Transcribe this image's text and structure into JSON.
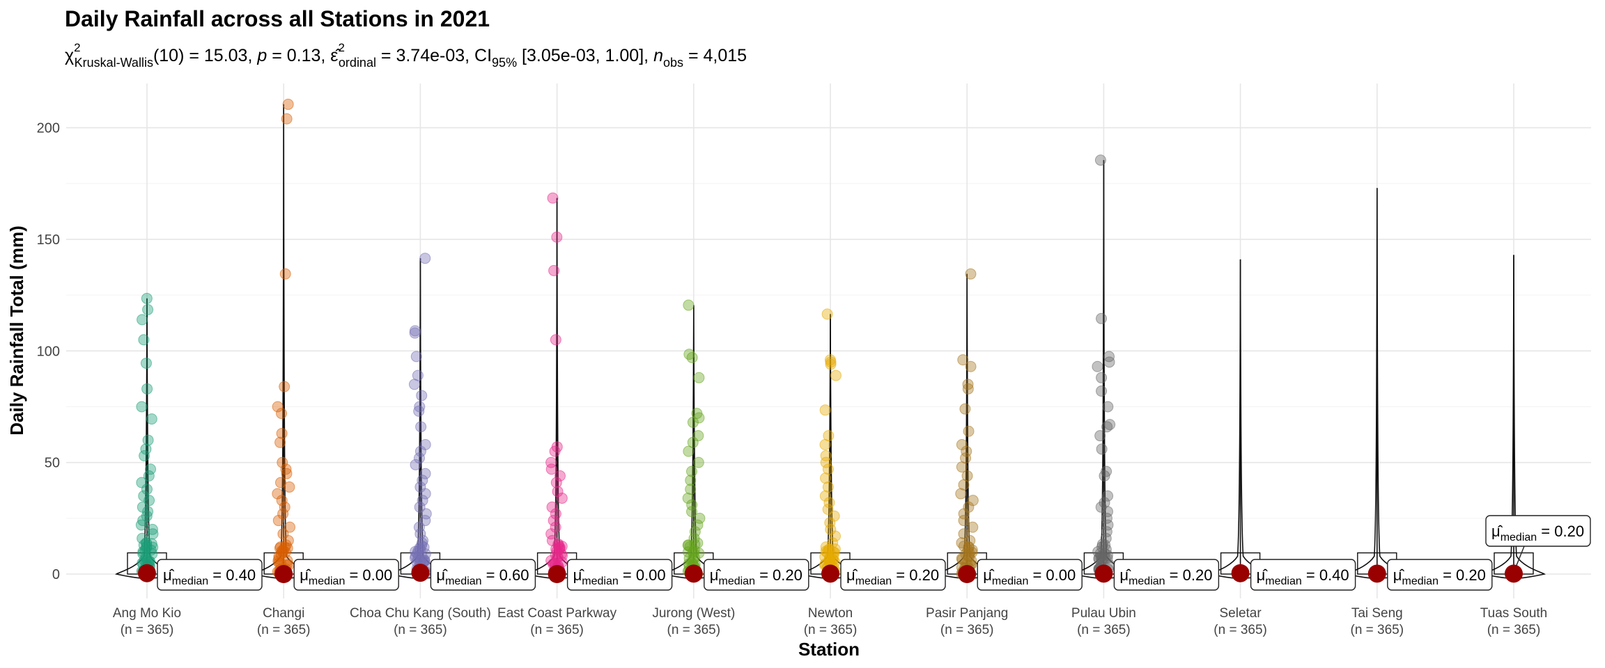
{
  "chart_data": {
    "type": "violin",
    "title": "Daily Rainfall across all Stations in 2021",
    "subtitle": {
      "stat_label": "χ",
      "stat_sup": "2",
      "stat_sub": "Kruskal-Wallis",
      "stat_value": "(10) = 15.03, ",
      "p_label": "p",
      "p_value": " = 0.13, ",
      "eff_label": "ε̂",
      "eff_sup": "2",
      "eff_sub": "ordinal",
      "eff_value": " = 3.74e-03, CI",
      "ci_sub": "95%",
      "ci_value": " [3.05e-03, 1.00], ",
      "n_label": "n",
      "n_sub": "obs",
      "n_value": " = 4,015"
    },
    "xlabel": "Station",
    "ylabel": "Daily Rainfall Total (mm)",
    "ylim": [
      -5,
      215
    ],
    "yticks": [
      0,
      50,
      100,
      150,
      200
    ],
    "median_prefix": "μ̂",
    "median_sub": "median",
    "stations": [
      {
        "name": "Ang Mo Kio",
        "n_label": "(n = 365)",
        "color": "#1B9E77",
        "median": 0.4,
        "median_text": " = 0.40",
        "max": 123.5,
        "points": [
          123.5,
          118.5,
          114,
          105,
          94.5,
          83,
          75,
          69.5,
          60,
          56,
          53,
          47,
          44,
          41,
          38,
          35,
          33,
          30,
          28,
          26,
          24,
          22,
          20,
          18,
          16,
          14,
          12,
          10,
          8,
          6,
          4,
          2,
          1
        ]
      },
      {
        "name": "Changi",
        "n_label": "(n = 365)",
        "color": "#D95F02",
        "median": 0.0,
        "median_text": " = 0.00",
        "max": 210.5,
        "points": [
          210.5,
          204,
          134.5,
          84,
          75,
          72,
          63,
          59,
          50,
          47,
          45,
          41,
          39,
          36,
          33,
          30,
          27,
          24,
          21,
          18,
          15,
          12,
          10,
          8,
          6,
          4,
          2,
          1
        ]
      },
      {
        "name": "Choa Chu Kang (South)",
        "n_label": "(n = 365)",
        "color": "#7570B3",
        "median": 0.6,
        "median_text": " = 0.60",
        "max": 141.5,
        "points": [
          141.5,
          109,
          108,
          97.5,
          89,
          85,
          80,
          75,
          73,
          66,
          58,
          55,
          52,
          49,
          45,
          42,
          39,
          36,
          33,
          30,
          27,
          24,
          21,
          18,
          15,
          12,
          9,
          6,
          3,
          1
        ]
      },
      {
        "name": "East Coast Parkway",
        "n_label": "(n = 365)",
        "color": "#E7298A",
        "median": 0.0,
        "median_text": " = 0.00",
        "max": 168.5,
        "points": [
          168.5,
          151,
          136,
          105,
          57,
          55,
          50,
          47,
          44,
          41,
          37,
          34,
          30,
          27,
          24,
          21,
          18,
          15,
          12,
          9,
          6,
          3,
          1
        ]
      },
      {
        "name": "Jurong (West)",
        "n_label": "(n = 365)",
        "color": "#66A61E",
        "median": 0.2,
        "median_text": " = 0.20",
        "max": 120.5,
        "points": [
          120.5,
          98.5,
          97,
          88,
          72,
          70,
          68,
          62,
          59,
          55,
          50,
          46,
          42,
          38,
          34,
          31,
          28,
          25,
          22,
          19,
          16,
          13,
          10,
          7,
          4,
          2,
          1
        ]
      },
      {
        "name": "Newton",
        "n_label": "(n = 365)",
        "color": "#E6AB02",
        "median": 0.2,
        "median_text": " = 0.20",
        "max": 116.5,
        "points": [
          116.5,
          96,
          95,
          94,
          89,
          73.5,
          62,
          58,
          53,
          50,
          47,
          43,
          39,
          35,
          32,
          29,
          26,
          23,
          20,
          17,
          14,
          11,
          8,
          5,
          3,
          1
        ]
      },
      {
        "name": "Pasir Panjang",
        "n_label": "(n = 365)",
        "color": "#A6761D",
        "median": 0.0,
        "median_text": " = 0.00",
        "max": 134.5,
        "points": [
          134.5,
          96,
          93,
          85,
          83,
          74,
          64,
          58,
          55,
          52,
          48,
          44,
          40,
          36,
          33,
          30,
          27,
          24,
          21,
          18,
          15,
          12,
          9,
          6,
          3,
          1
        ]
      },
      {
        "name": "Pulau Ubin",
        "n_label": "(n = 365)",
        "color": "#666666",
        "median": 0.2,
        "median_text": " = 0.20",
        "max": 185.5,
        "points": [
          185.5,
          114.5,
          97.5,
          95,
          93,
          88,
          82,
          75,
          67,
          66,
          62,
          56,
          46,
          44,
          35,
          32,
          30,
          28,
          25,
          22,
          19,
          16,
          13,
          10,
          7,
          4,
          2,
          1
        ]
      },
      {
        "name": "Seletar",
        "n_label": "(n = 365)",
        "color": "#1B9E77",
        "median": 0.4,
        "median_text": " = 0.40",
        "max": 141,
        "points": []
      },
      {
        "name": "Tai Seng",
        "n_label": "(n = 365)",
        "color": "#D95F02",
        "median": 0.2,
        "median_text": " = 0.20",
        "max": 173,
        "points": []
      },
      {
        "name": "Tuas South",
        "n_label": "(n = 365)",
        "color": "#7570B3",
        "median": 0.2,
        "median_text": " = 0.20",
        "max": 143,
        "points": []
      }
    ]
  }
}
